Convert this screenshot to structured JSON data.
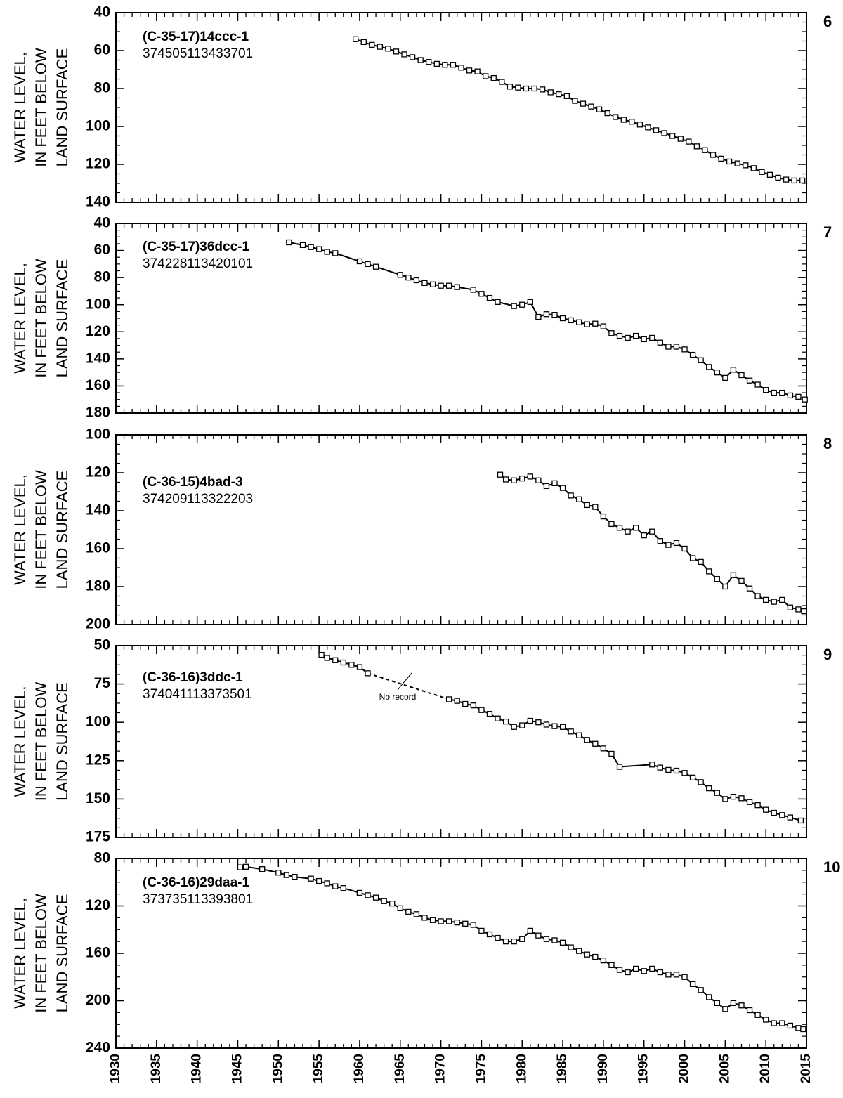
{
  "chart_data": [
    {
      "type": "line",
      "title": "(C-35-17)14ccc-1",
      "subtitle": "374505113433701",
      "panel_label": "6",
      "ylabel": [
        "WATER LEVEL,",
        "IN FEET BELOW",
        "LAND SURFACE"
      ],
      "xlim": [
        1930,
        2015
      ],
      "xticks": [
        1930,
        1935,
        1940,
        1945,
        1950,
        1955,
        1960,
        1965,
        1970,
        1975,
        1980,
        1985,
        1990,
        1995,
        2000,
        2005,
        2010,
        2015
      ],
      "xtick_labels": false,
      "ylim": [
        40,
        140
      ],
      "yticks": [
        40,
        60,
        80,
        100,
        120,
        140
      ],
      "y_inverted": true,
      "color": "#000000",
      "x": [
        1959.5,
        1960.5,
        1961.5,
        1962.5,
        1963.5,
        1964.5,
        1965.5,
        1966.5,
        1967.5,
        1968.5,
        1969.5,
        1970.5,
        1971.5,
        1972.5,
        1973.5,
        1974.5,
        1975.5,
        1976.5,
        1977.5,
        1978.5,
        1979.5,
        1980.5,
        1981.5,
        1982.5,
        1983.5,
        1984.5,
        1985.5,
        1986.5,
        1987.5,
        1988.5,
        1989.5,
        1990.5,
        1991.5,
        1992.5,
        1993.5,
        1994.5,
        1995.5,
        1996.5,
        1997.5,
        1998.5,
        1999.5,
        2000.5,
        2001.5,
        2002.5,
        2003.5,
        2004.5,
        2005.5,
        2006.5,
        2007.5,
        2008.5,
        2009.5,
        2010.5,
        2011.5,
        2012.5,
        2013.5,
        2014.5
      ],
      "values": [
        54,
        55.5,
        57,
        58,
        59,
        60.5,
        62,
        63.5,
        65,
        66,
        67,
        67.5,
        67.5,
        69,
        70.5,
        71,
        73.5,
        74.5,
        76.5,
        79,
        79.5,
        80,
        80,
        80.5,
        82,
        83,
        84,
        86.5,
        88,
        89.5,
        91,
        93,
        95,
        96.5,
        97.5,
        99,
        100.5,
        102,
        103.5,
        105,
        106.5,
        108,
        110.5,
        112.5,
        115,
        117,
        118.5,
        119.5,
        120.5,
        122,
        124,
        125.5,
        127,
        128,
        128.5,
        128.5
      ]
    },
    {
      "type": "line",
      "title": "(C-35-17)36dcc-1",
      "subtitle": "374228113420101",
      "panel_label": "7",
      "ylabel": [
        "WATER LEVEL,",
        "IN FEET BELOW",
        "LAND SURFACE"
      ],
      "xlim": [
        1930,
        2015
      ],
      "xticks": [
        1930,
        1935,
        1940,
        1945,
        1950,
        1955,
        1960,
        1965,
        1970,
        1975,
        1980,
        1985,
        1990,
        1995,
        2000,
        2005,
        2010,
        2015
      ],
      "xtick_labels": false,
      "ylim": [
        40,
        180
      ],
      "yticks": [
        40,
        60,
        80,
        100,
        120,
        140,
        160,
        180
      ],
      "y_inverted": true,
      "color": "#000000",
      "x": [
        1951.3,
        1953,
        1954,
        1955,
        1956,
        1957,
        1960,
        1961,
        1962,
        1965,
        1966,
        1967,
        1968,
        1969,
        1970,
        1971,
        1972,
        1974,
        1975,
        1976,
        1977,
        1979,
        1980,
        1981,
        1982,
        1983,
        1984,
        1985,
        1986,
        1987,
        1988,
        1989,
        1990,
        1991,
        1992,
        1993,
        1994,
        1995,
        1996,
        1997,
        1998,
        1999,
        2000,
        2001,
        2002,
        2003,
        2004,
        2005,
        2006,
        2007,
        2008,
        2009,
        2010,
        2011,
        2012,
        2013,
        2014,
        2014.8
      ],
      "values": [
        54,
        56,
        57.5,
        59,
        61,
        62,
        68,
        70,
        72,
        78,
        80,
        82,
        84,
        85,
        86,
        86,
        87,
        89,
        92,
        95,
        98,
        101,
        100,
        98,
        109,
        107,
        107.5,
        110,
        111.5,
        113,
        114.5,
        114,
        116,
        121,
        123,
        124.5,
        123,
        125.5,
        124.5,
        128,
        131,
        131,
        133,
        137,
        141,
        146,
        150,
        154,
        148,
        152,
        156,
        159,
        163,
        165,
        165,
        167,
        168,
        170
      ]
    },
    {
      "type": "line",
      "title": "(C-36-15)4bad-3",
      "subtitle": "374209113322203",
      "panel_label": "8",
      "ylabel": [
        "WATER LEVEL,",
        "IN FEET BELOW",
        "LAND SURFACE"
      ],
      "xlim": [
        1930,
        2015
      ],
      "xticks": [
        1930,
        1935,
        1940,
        1945,
        1950,
        1955,
        1960,
        1965,
        1970,
        1975,
        1980,
        1985,
        1990,
        1995,
        2000,
        2005,
        2010,
        2015
      ],
      "xtick_labels": false,
      "ylim": [
        100,
        200
      ],
      "yticks": [
        100,
        120,
        140,
        160,
        180,
        200
      ],
      "y_inverted": true,
      "color": "#000000",
      "x": [
        1977.3,
        1978,
        1979,
        1980,
        1981,
        1982,
        1983,
        1984,
        1985,
        1986,
        1987,
        1988,
        1989,
        1990,
        1991,
        1992,
        1993,
        1994,
        1995,
        1996,
        1997,
        1998,
        1999,
        2000,
        2001,
        2002,
        2003,
        2004,
        2005,
        2006,
        2007,
        2008,
        2009,
        2010,
        2011,
        2012,
        2013,
        2014,
        2014.7
      ],
      "values": [
        121,
        123.5,
        124,
        123,
        122,
        124,
        127,
        125.5,
        128,
        132,
        134,
        137,
        138,
        143,
        147,
        149,
        151,
        149,
        153,
        151,
        156,
        158,
        157,
        160,
        165,
        167,
        172,
        176,
        180,
        174,
        177,
        181,
        185,
        187,
        188,
        187,
        191,
        192,
        193
      ]
    },
    {
      "type": "line",
      "title": "(C-36-16)3ddc-1",
      "subtitle": "374041113373501",
      "panel_label": "9",
      "ylabel": [
        "WATER LEVEL,",
        "IN FEET BELOW",
        "LAND SURFACE"
      ],
      "xlim": [
        1930,
        2015
      ],
      "xticks": [
        1930,
        1935,
        1940,
        1945,
        1950,
        1955,
        1960,
        1965,
        1970,
        1975,
        1980,
        1985,
        1990,
        1995,
        2000,
        2005,
        2010,
        2015
      ],
      "xtick_labels": false,
      "ylim": [
        50,
        175
      ],
      "yticks": [
        50,
        75,
        100,
        125,
        150,
        175
      ],
      "y_inverted": true,
      "color": "#000000",
      "gap_style": "dashed",
      "annotation": "No record",
      "x": [
        1955.3,
        1956,
        1957,
        1958,
        1959,
        1960,
        1961,
        1966,
        1971,
        1972,
        1973,
        1974,
        1975,
        1976,
        1977,
        1978,
        1979,
        1980,
        1981,
        1982,
        1983,
        1984,
        1985,
        1986,
        1987,
        1988,
        1989,
        1990,
        1991,
        1992,
        1996,
        1997,
        1998,
        1999,
        2000,
        2001,
        2002,
        2003,
        2004,
        2005,
        2006,
        2007,
        2008,
        2009,
        2010,
        2011,
        2012,
        2013,
        2014.3
      ],
      "values": [
        56,
        58,
        59.5,
        61,
        62.5,
        64,
        68,
        null,
        85,
        86,
        88,
        89,
        92,
        94.5,
        97.5,
        99.5,
        103,
        102,
        99,
        100,
        101.5,
        102.5,
        103,
        106,
        108.5,
        111.5,
        114,
        117,
        120.5,
        129,
        127.5,
        129.5,
        131,
        131.5,
        133,
        136,
        139,
        143,
        146,
        150,
        148.5,
        149.5,
        152,
        154,
        157,
        159,
        160.5,
        162,
        164
      ]
    },
    {
      "type": "line",
      "title": "(C-36-16)29daa-1",
      "subtitle": "373735113393801",
      "panel_label": "10",
      "ylabel": [
        "WATER LEVEL,",
        "IN FEET BELOW",
        "LAND SURFACE"
      ],
      "xlim": [
        1930,
        2015
      ],
      "xticks": [
        1930,
        1935,
        1940,
        1945,
        1950,
        1955,
        1960,
        1965,
        1970,
        1975,
        1980,
        1985,
        1990,
        1995,
        2000,
        2005,
        2010,
        2015
      ],
      "xtick_labels": true,
      "ylim": [
        80,
        240
      ],
      "yticks": [
        80,
        120,
        160,
        200,
        240
      ],
      "y_inverted": true,
      "color": "#000000",
      "x": [
        1945.3,
        1946,
        1948,
        1950,
        1951,
        1952,
        1954,
        1955,
        1956,
        1957,
        1958,
        1960,
        1961,
        1962,
        1963,
        1964,
        1965,
        1966,
        1967,
        1968,
        1969,
        1970,
        1971,
        1972,
        1973,
        1974,
        1975,
        1976,
        1977,
        1978,
        1979,
        1980,
        1981,
        1982,
        1983,
        1984,
        1985,
        1986,
        1987,
        1988,
        1989,
        1990,
        1991,
        1992,
        1993,
        1994,
        1995,
        1996,
        1997,
        1998,
        1999,
        2000,
        2001,
        2002,
        2003,
        2004,
        2005,
        2006,
        2007,
        2008,
        2009,
        2010,
        2011,
        2012,
        2013,
        2014,
        2014.6
      ],
      "values": [
        87.5,
        87,
        89,
        92,
        94,
        95.5,
        97,
        99,
        101,
        103.5,
        105,
        109,
        111,
        113,
        116,
        118,
        122,
        125,
        127,
        130,
        132,
        133,
        133,
        134,
        135,
        136,
        141,
        144,
        147,
        150,
        150,
        148,
        141,
        145,
        148,
        149,
        151,
        155,
        158,
        161,
        163,
        166,
        170,
        174,
        176,
        173,
        175,
        173,
        176,
        178,
        178,
        180,
        186,
        191,
        197,
        202,
        207,
        202,
        204,
        208,
        212,
        216,
        219,
        219,
        221,
        223,
        224
      ]
    }
  ]
}
